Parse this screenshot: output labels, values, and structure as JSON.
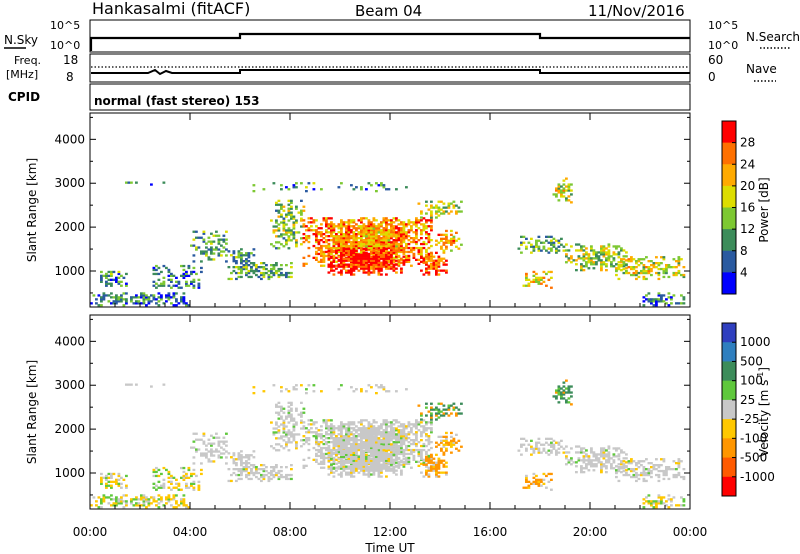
{
  "header": {
    "station": "Hankasalmi (fitACF)",
    "beam": "Beam 04",
    "date": "11/Nov/2016"
  },
  "mini_panels": {
    "nsky_label": "N.Sky",
    "nsearch_label": "N.Search",
    "nsky_ticks": [
      "10^5",
      "10^0"
    ],
    "nsearch_ticks": [
      "10^5",
      "10^0"
    ],
    "freq_label": "Freq.",
    "freq_unit": "[MHz]",
    "freq_ticks": [
      "18",
      "8"
    ],
    "nave_label": "Nave",
    "nave_ticks": [
      "60",
      "0"
    ],
    "cpid_label": "CPID",
    "cpid_text": "normal (fast stereo) 153"
  },
  "chart_data": [
    {
      "type": "heatmap",
      "name": "power",
      "ylabel": "Slant Range [km]",
      "yticks": [
        1000,
        2000,
        3000,
        4000
      ],
      "ylim": [
        180,
        4600
      ],
      "xlim": [
        0,
        24
      ],
      "colorbar": {
        "label": "Power [dB]",
        "ticks": [
          "28",
          "24",
          "20",
          "16",
          "12",
          "8",
          "4"
        ],
        "colors": [
          "#ff0000",
          "#ff7000",
          "#ffaa00",
          "#dddd00",
          "#7dc832",
          "#3c8c5a",
          "#2a5aa0",
          "#0000ff"
        ]
      }
    },
    {
      "type": "heatmap",
      "name": "velocity",
      "ylabel": "Slant Range [km]",
      "yticks": [
        1000,
        2000,
        3000,
        4000
      ],
      "ylim": [
        180,
        4600
      ],
      "xlim": [
        0,
        24
      ],
      "xlabel": "Time UT",
      "xticks": [
        "00:00",
        "04:00",
        "08:00",
        "12:00",
        "16:00",
        "20:00",
        "00:00"
      ],
      "colorbar": {
        "label": "Velocity [m s",
        "label_sup": "-1",
        "label_end": "]",
        "ticks": [
          "1000",
          "500",
          "100",
          "25",
          "-25",
          "-100",
          "-500",
          "-1000"
        ],
        "colors": [
          "#2f3fbf",
          "#2f7fbf",
          "#3c8c5a",
          "#5fc83c",
          "#c8c8c8",
          "#ffc800",
          "#ff9600",
          "#ff5a00",
          "#ff0000"
        ]
      }
    }
  ]
}
